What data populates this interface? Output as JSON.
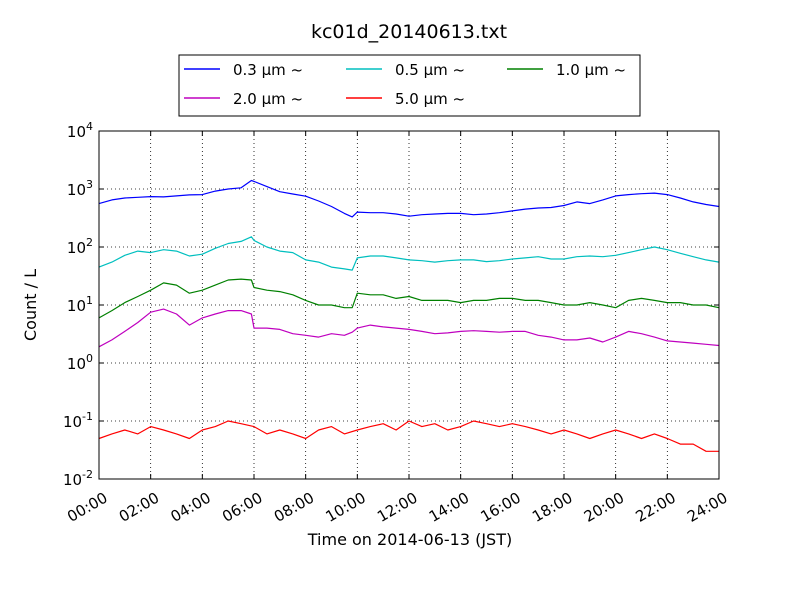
{
  "chart_data": {
    "type": "line",
    "title": "kc01d_20140613.txt",
    "xlabel": "Time on 2014-06-13 (JST)",
    "ylabel": "Count / L",
    "x_unit": "hour (JST)",
    "xlim": [
      0,
      24
    ],
    "ylim": [
      0.01,
      10000
    ],
    "yscale": "log",
    "grid": true,
    "legend_position": "top",
    "x_ticks": [
      "00:00",
      "02:00",
      "04:00",
      "06:00",
      "08:00",
      "10:00",
      "12:00",
      "14:00",
      "16:00",
      "18:00",
      "20:00",
      "22:00",
      "24:00"
    ],
    "y_ticks": [
      {
        "base": "10",
        "exp": "-2",
        "value": 0.01
      },
      {
        "base": "10",
        "exp": "-1",
        "value": 0.1
      },
      {
        "base": "10",
        "exp": "0",
        "value": 1
      },
      {
        "base": "10",
        "exp": "1",
        "value": 10
      },
      {
        "base": "10",
        "exp": "2",
        "value": 100
      },
      {
        "base": "10",
        "exp": "3",
        "value": 1000
      },
      {
        "base": "10",
        "exp": "4",
        "value": 10000
      }
    ],
    "series": [
      {
        "name": "0.3 μm ~",
        "color": "#0000ff",
        "x": [
          0,
          0.5,
          1,
          1.5,
          2,
          2.5,
          3,
          3.5,
          4,
          4.5,
          5,
          5.5,
          5.9,
          6,
          6.5,
          7,
          7.5,
          8,
          8.5,
          9,
          9.5,
          9.8,
          10,
          10.5,
          11,
          11.5,
          12,
          12.5,
          13,
          13.5,
          14,
          14.5,
          15,
          15.5,
          16,
          16.5,
          17,
          17.5,
          18,
          18.5,
          19,
          19.5,
          20,
          20.5,
          21,
          21.5,
          22,
          22.5,
          23,
          23.5,
          24
        ],
        "y": [
          560,
          650,
          700,
          720,
          740,
          730,
          760,
          790,
          800,
          920,
          1000,
          1050,
          1400,
          1350,
          1100,
          900,
          820,
          750,
          620,
          500,
          380,
          330,
          400,
          390,
          390,
          370,
          340,
          360,
          370,
          380,
          380,
          360,
          370,
          390,
          420,
          450,
          470,
          480,
          520,
          600,
          560,
          650,
          760,
          800,
          830,
          850,
          800,
          700,
          600,
          540,
          500
        ]
      },
      {
        "name": "0.5 μm ~",
        "color": "#00bfbf",
        "x": [
          0,
          0.5,
          1,
          1.5,
          2,
          2.5,
          3,
          3.5,
          4,
          4.5,
          5,
          5.5,
          5.9,
          6,
          6.5,
          7,
          7.5,
          8,
          8.5,
          9,
          9.5,
          9.8,
          10,
          10.5,
          11,
          11.5,
          12,
          12.5,
          13,
          13.5,
          14,
          14.5,
          15,
          15.5,
          16,
          16.5,
          17,
          17.5,
          18,
          18.5,
          19,
          19.5,
          20,
          20.5,
          21,
          21.5,
          22,
          22.5,
          23,
          23.5,
          24
        ],
        "y": [
          45,
          55,
          72,
          85,
          80,
          90,
          85,
          70,
          75,
          95,
          115,
          125,
          150,
          130,
          100,
          85,
          80,
          60,
          55,
          45,
          42,
          40,
          65,
          70,
          70,
          65,
          60,
          58,
          55,
          58,
          60,
          60,
          56,
          58,
          62,
          65,
          68,
          62,
          62,
          68,
          70,
          68,
          72,
          80,
          90,
          100,
          90,
          78,
          68,
          60,
          55
        ]
      },
      {
        "name": "1.0 μm ~",
        "color": "#008000",
        "x": [
          0,
          0.5,
          1,
          1.5,
          2,
          2.5,
          3,
          3.5,
          4,
          4.5,
          5,
          5.5,
          5.9,
          6,
          6.5,
          7,
          7.5,
          8,
          8.5,
          9,
          9.5,
          9.8,
          10,
          10.5,
          11,
          11.5,
          12,
          12.5,
          13,
          13.5,
          14,
          14.5,
          15,
          15.5,
          16,
          16.5,
          17,
          17.5,
          18,
          18.5,
          19,
          19.5,
          20,
          20.5,
          21,
          21.5,
          22,
          22.5,
          23,
          23.5,
          24
        ],
        "y": [
          6,
          8,
          11,
          14,
          18,
          24,
          22,
          16,
          18,
          22,
          27,
          28,
          27,
          20,
          18,
          17,
          15,
          12,
          10,
          10,
          9,
          9,
          16,
          15,
          15,
          13,
          14,
          12,
          12,
          12,
          11,
          12,
          12,
          13,
          13,
          12,
          12,
          11,
          10,
          10,
          11,
          10,
          9,
          12,
          13,
          12,
          11,
          11,
          10,
          10,
          9
        ]
      },
      {
        "name": "2.0 μm ~",
        "color": "#bf00bf",
        "x": [
          0,
          0.5,
          1,
          1.5,
          2,
          2.5,
          3,
          3.5,
          4,
          4.5,
          5,
          5.5,
          5.9,
          6,
          6.5,
          7,
          7.5,
          8,
          8.5,
          9,
          9.5,
          9.8,
          10,
          10.5,
          11,
          11.5,
          12,
          12.5,
          13,
          13.5,
          14,
          14.5,
          15,
          15.5,
          16,
          16.5,
          17,
          17.5,
          18,
          18.5,
          19,
          19.5,
          20,
          20.5,
          21,
          21.5,
          22,
          22.5,
          23,
          23.5,
          24
        ],
        "y": [
          1.9,
          2.5,
          3.5,
          5,
          7.5,
          8.5,
          7,
          4.5,
          6,
          7,
          8,
          8,
          7,
          4,
          4,
          3.8,
          3.2,
          3,
          2.8,
          3.2,
          3,
          3.4,
          4,
          4.5,
          4.2,
          4,
          3.8,
          3.5,
          3.2,
          3.3,
          3.5,
          3.6,
          3.5,
          3.4,
          3.5,
          3.5,
          3,
          2.8,
          2.5,
          2.5,
          2.7,
          2.3,
          2.8,
          3.5,
          3.2,
          2.8,
          2.4,
          2.3,
          2.2,
          2.1,
          2
        ]
      },
      {
        "name": "5.0 μm ~",
        "color": "#ff0000",
        "x": [
          0,
          0.5,
          1,
          1.5,
          2,
          2.5,
          3,
          3.5,
          4,
          4.5,
          5,
          5.5,
          6,
          6.5,
          7,
          7.5,
          8,
          8.5,
          9,
          9.5,
          10,
          10.5,
          11,
          11.5,
          12,
          12.5,
          13,
          13.5,
          14,
          14.5,
          15,
          15.5,
          16,
          16.5,
          17,
          17.5,
          18,
          18.5,
          19,
          19.5,
          20,
          20.5,
          21,
          21.5,
          22,
          22.5,
          23,
          23.5,
          24
        ],
        "y": [
          0.05,
          0.06,
          0.07,
          0.06,
          0.08,
          0.07,
          0.06,
          0.05,
          0.07,
          0.08,
          0.1,
          0.09,
          0.08,
          0.06,
          0.07,
          0.06,
          0.05,
          0.07,
          0.08,
          0.06,
          0.07,
          0.08,
          0.09,
          0.07,
          0.1,
          0.08,
          0.09,
          0.07,
          0.08,
          0.1,
          0.09,
          0.08,
          0.09,
          0.08,
          0.07,
          0.06,
          0.07,
          0.06,
          0.05,
          0.06,
          0.07,
          0.06,
          0.05,
          0.06,
          0.05,
          0.04,
          0.04,
          0.03,
          0.03
        ]
      }
    ]
  }
}
